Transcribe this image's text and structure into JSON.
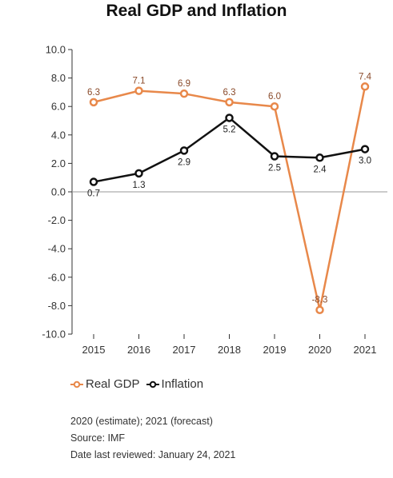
{
  "chart_data": {
    "type": "line",
    "title": "Real GDP and Inflation",
    "xlabel": "",
    "ylabel": "",
    "categories": [
      "2015",
      "2016",
      "2017",
      "2018",
      "2019",
      "2020",
      "2021"
    ],
    "series": [
      {
        "name": "Real GDP",
        "color": "#e8884a",
        "values": [
          6.3,
          7.1,
          6.9,
          6.3,
          6.0,
          -8.3,
          7.4
        ],
        "labels": [
          "6.3",
          "7.1",
          "6.9",
          "6.3",
          "6.0",
          "-8.3",
          "7.4"
        ],
        "label_position": "above"
      },
      {
        "name": "Inflation",
        "color": "#111111",
        "values": [
          0.7,
          1.3,
          2.9,
          5.2,
          2.5,
          2.4,
          3.0
        ],
        "labels": [
          "0.7",
          "1.3",
          "2.9",
          "5.2",
          "2.5",
          "2.4",
          "3.0"
        ],
        "label_position": "below"
      }
    ],
    "ylim": [
      -10,
      10
    ],
    "yticks": [
      10,
      8,
      6,
      4,
      2,
      0,
      -2,
      -4,
      -6,
      -8,
      -10
    ],
    "ytick_labels": [
      "10.0",
      "8.0",
      "6.0",
      "4.0",
      "2.0",
      "0.0",
      "-2.0",
      "-4.0",
      "-6.0",
      "-8.0",
      "-10.0"
    ],
    "grid": false,
    "legend": "bottom-left"
  },
  "notes": [
    "2020 (estimate); 2021 (forecast)",
    "Source: IMF",
    "Date last reviewed: January 24, 2021"
  ]
}
